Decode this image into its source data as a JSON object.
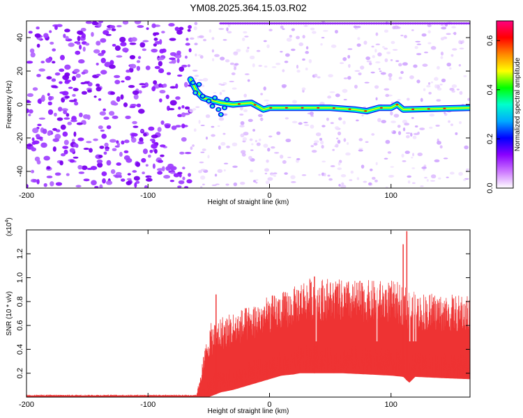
{
  "title": "YM08.2025.364.15.03.R02",
  "chart_data": [
    {
      "type": "heatmap",
      "panel": "spectrogram",
      "xlabel": "Height of straight line (km)",
      "ylabel": "Frequency (Hz)",
      "xlim": [
        -200,
        165
      ],
      "ylim": [
        -50,
        50
      ],
      "xticks": [
        "-200",
        "-100",
        "0",
        "100"
      ],
      "xtick_values": [
        -200,
        -100,
        0,
        100
      ],
      "yticks": [
        "-40",
        "-20",
        "0",
        "20",
        "40"
      ],
      "ytick_values": [
        -40,
        -20,
        0,
        20,
        40
      ],
      "colorbar": {
        "label": "Normalized spectral amplitude",
        "range": [
          0.0,
          0.68
        ],
        "ticks": [
          "0.0",
          "0.2",
          "0.4",
          "0.6"
        ],
        "tick_values": [
          0.0,
          0.2,
          0.4,
          0.6
        ],
        "colors": [
          "#ffffff",
          "#cc77ff",
          "#8a00ff",
          "#0000ff",
          "#00aaff",
          "#00ffcc",
          "#00ff00",
          "#ffff00",
          "#ff8800",
          "#ff0000",
          "#ff0080"
        ]
      },
      "signal_track": {
        "description_points": [
          [
            -65,
            15
          ],
          [
            -60,
            8
          ],
          [
            -55,
            4
          ],
          [
            -50,
            3
          ],
          [
            -40,
            1
          ],
          [
            -30,
            0
          ],
          [
            -15,
            1
          ],
          [
            -5,
            -3
          ],
          [
            0,
            -2
          ],
          [
            20,
            -2
          ],
          [
            50,
            -2
          ],
          [
            70,
            -3
          ],
          [
            80,
            -4
          ],
          [
            90,
            -2
          ],
          [
            100,
            -2
          ],
          [
            105,
            0
          ],
          [
            110,
            -3
          ],
          [
            165,
            -2
          ]
        ],
        "noise_floor_left": 0.3,
        "noise_floor_right": 0.05
      }
    },
    {
      "type": "line",
      "panel": "snr",
      "series_color": "#ee3333",
      "xlabel": "Height of straight line (km)",
      "ylabel": "SNR (10 * v/v)",
      "y_multiplier": "(x10",
      "y_multiplier_exp": "4",
      "y_multiplier_close": ")",
      "xlim": [
        -200,
        165
      ],
      "ylim": [
        0,
        1.4
      ],
      "xticks": [
        "-200",
        "-100",
        "0",
        "100"
      ],
      "xtick_values": [
        -200,
        -100,
        0,
        100
      ],
      "yticks": [
        "0.2",
        "0.4",
        "0.6",
        "0.8",
        "1.0",
        "1.2"
      ],
      "ytick_values": [
        0.2,
        0.4,
        0.6,
        0.8,
        1.0,
        1.2
      ],
      "envelope": {
        "x": [
          -200,
          -60,
          -50,
          -45,
          -40,
          -30,
          -20,
          -10,
          0,
          10,
          20,
          25,
          30,
          40,
          50,
          60,
          80,
          100,
          110,
          115,
          120,
          140,
          165
        ],
        "lower": [
          0.0,
          0.0,
          0.0,
          0.02,
          0.04,
          0.06,
          0.09,
          0.12,
          0.15,
          0.18,
          0.19,
          0.2,
          0.2,
          0.2,
          0.2,
          0.2,
          0.19,
          0.18,
          0.17,
          0.12,
          0.17,
          0.16,
          0.15
        ],
        "upper": [
          0.02,
          0.02,
          0.6,
          0.65,
          0.68,
          0.72,
          0.75,
          0.8,
          0.85,
          0.88,
          0.92,
          0.98,
          1.0,
          1.0,
          1.0,
          0.98,
          0.98,
          0.98,
          0.95,
          0.9,
          0.88,
          0.87,
          0.85
        ]
      },
      "spikes": [
        {
          "x": -44,
          "y": 0.86
        },
        {
          "x": 37,
          "y": 1.01
        },
        {
          "x": 110,
          "y": 1.28
        },
        {
          "x": 113,
          "y": 1.39
        }
      ]
    }
  ]
}
